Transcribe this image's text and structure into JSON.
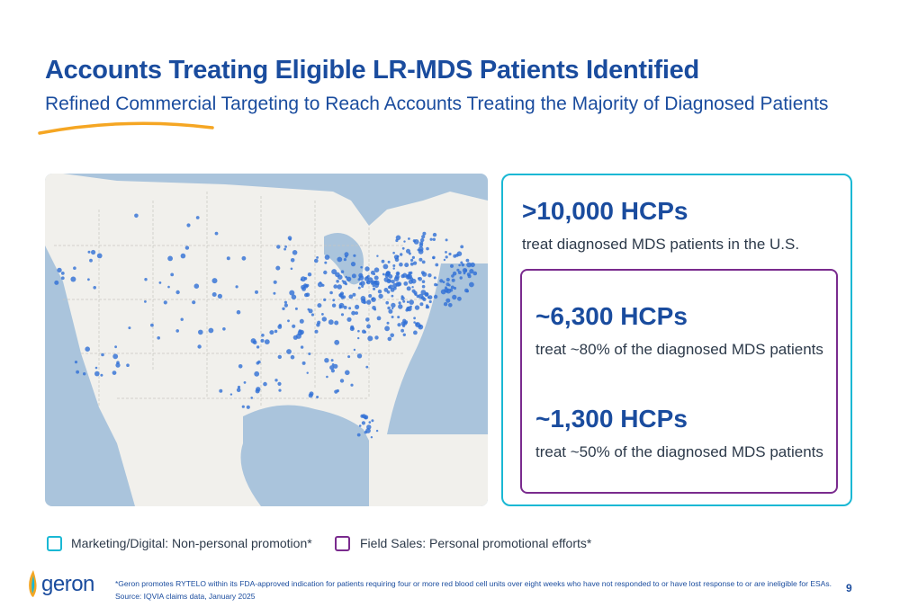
{
  "header": {
    "title": "Accounts Treating Eligible LR-MDS Patients Identified",
    "subtitle": "Refined Commercial Targeting to Reach Accounts Treating the Majority of Diagnosed Patients"
  },
  "stats": [
    {
      "value": ">10,000 HCPs",
      "description": "treat diagnosed MDS patients in the U.S."
    },
    {
      "value": "~6,300 HCPs",
      "description": "treat ~80% of the diagnosed MDS patients"
    },
    {
      "value": "~1,300 HCPs",
      "description": "treat ~50% of the diagnosed MDS patients"
    }
  ],
  "legend": [
    {
      "label": "Marketing/Digital: Non-personal promotion*",
      "color": "#1ab8d4"
    },
    {
      "label": "Field Sales: Personal promotional efforts*",
      "color": "#7a2b8e"
    }
  ],
  "footer": {
    "logo": "geron",
    "footnote": "*Geron promotes RYTELO within its FDA-approved indication for patients requiring four or more red blood cell units over eight weeks who have not responded to or have lost response to or are ineligible for ESAs.",
    "source": "Source: IQVIA claims data, January 2025",
    "page_number": "9"
  },
  "colors": {
    "brand_blue": "#1a4c9e",
    "teal": "#1ab8d4",
    "purple": "#7a2b8e",
    "accent_orange": "#f5a623",
    "dot_blue": "#2f6fd6"
  }
}
